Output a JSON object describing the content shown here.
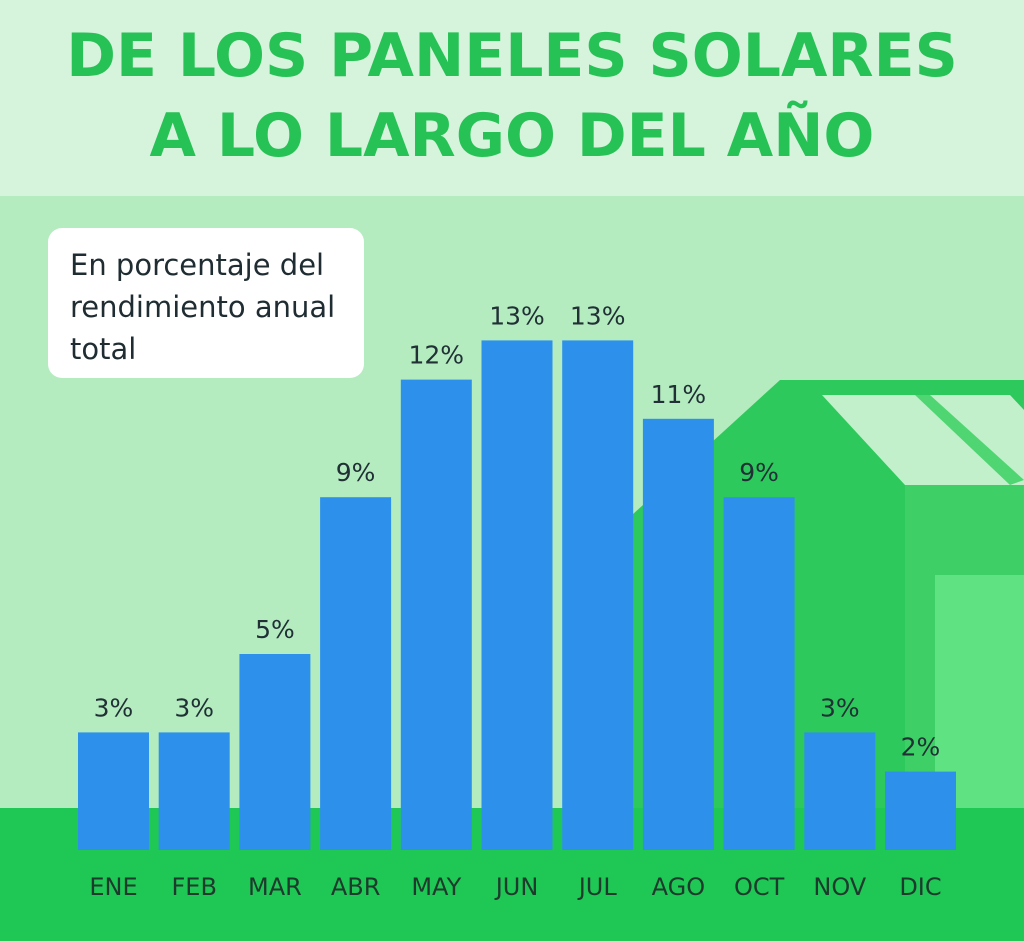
{
  "title_lines": [
    "DE LOS PANELES SOLARES",
    "A LO LARGO DEL AÑO"
  ],
  "subtitle": "En porcentaje del\nrendimiento anual\ntotal",
  "colors": {
    "title": "#27c255",
    "bar": "#2d91ec",
    "ground": "#1fc755",
    "house": "#2ec95c",
    "header_bg": "#d6f3dc",
    "plot_bg": "#b4ecc0"
  },
  "chart_data": {
    "type": "bar",
    "categories": [
      "ENE",
      "FEB",
      "MAR",
      "ABR",
      "MAY",
      "JUN",
      "JUL",
      "AGO",
      "OCT",
      "NOV",
      "DIC"
    ],
    "values": [
      3,
      3,
      5,
      9,
      12,
      13,
      13,
      11,
      9,
      3,
      2
    ],
    "value_labels": [
      "3%",
      "3%",
      "5%",
      "9%",
      "12%",
      "13%",
      "13%",
      "11%",
      "9%",
      "3%",
      "2%"
    ],
    "ylabel": "En porcentaje del rendimiento anual total",
    "grid": false,
    "legend": "none"
  }
}
